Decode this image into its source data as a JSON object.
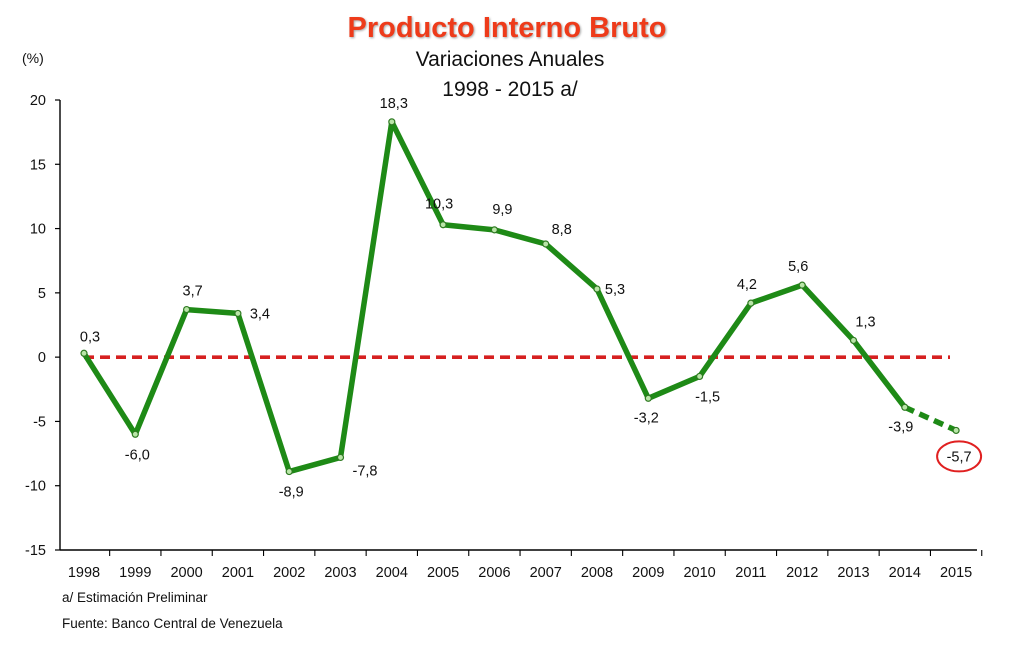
{
  "chart_data": {
    "type": "line",
    "title": "Producto Interno Bruto",
    "subtitle": "Variaciones Anuales",
    "period": "1998  - 2015 a/",
    "ylabel": "(%)",
    "categories": [
      "1998",
      "1999",
      "2000",
      "2001",
      "2002",
      "2003",
      "2004",
      "2005",
      "2006",
      "2007",
      "2008",
      "2009",
      "2010",
      "2011",
      "2012",
      "2013",
      "2014",
      "2015"
    ],
    "series": [
      {
        "values": [
          0.3,
          -6.0,
          3.7,
          3.4,
          -8.9,
          -7.8,
          18.3,
          10.3,
          9.9,
          8.8,
          5.3,
          -3.2,
          -1.5,
          4.2,
          5.6,
          1.3,
          -3.9,
          -5.7
        ],
        "data_labels": [
          "0,3",
          "-6,0",
          "3,7",
          "3,4",
          "-8,9",
          "-7,8",
          "18,3",
          "10,3",
          "9,9",
          "8,8",
          "5,3",
          "-3,2",
          "-1,5",
          "4,2",
          "5,6",
          "1,3",
          "-3,9",
          "-5,7"
        ],
        "color": "#1e8a16",
        "estimated_last_segment": true
      }
    ],
    "ylim": [
      -15,
      20
    ],
    "yticks": [
      -15,
      -10,
      -5,
      0,
      5,
      10,
      15,
      20
    ],
    "ytick_labels": [
      "-15",
      "-10",
      "-5",
      "0",
      "5",
      "10",
      "15",
      "20"
    ],
    "reference_line": {
      "value": 0,
      "color": "#d62020",
      "style": "dashed"
    },
    "highlighted_point": {
      "category": "2015",
      "color": "#e02020"
    },
    "grid": false,
    "legend": "none"
  },
  "notes": {
    "footnote": "a/ Estimación Preliminar",
    "source": "Fuente: Banco Central de Venezuela"
  }
}
